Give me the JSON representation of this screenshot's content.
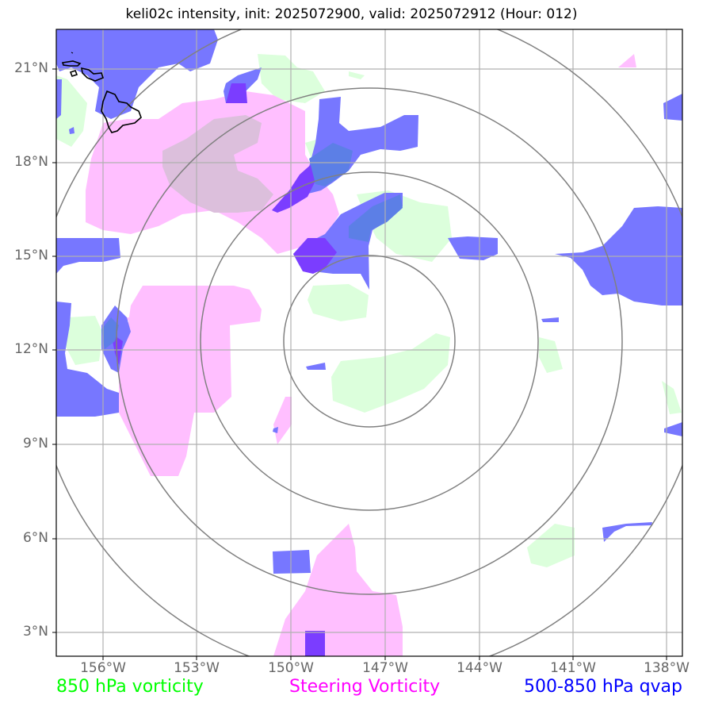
{
  "title": "keli02c intensity, init: 2025072900, valid: 2025072912 (Hour: 012)",
  "lat_labels": [
    "21°N",
    "18°N",
    "15°N",
    "12°N",
    "9°N",
    "6°N",
    "3°N"
  ],
  "lon_labels": [
    "156°W",
    "153°W",
    "150°W",
    "147°W",
    "144°W",
    "141°W",
    "138°W"
  ],
  "legend": {
    "vort850": {
      "label": "850 hPa vorticity",
      "color": "#00ff00"
    },
    "steering": {
      "label": "Steering Vorticity",
      "color": "#ff00ff"
    },
    "qvap": {
      "label": "500-850 hPa qvap",
      "color": "#0000ff"
    }
  },
  "colors": {
    "green_fill": "#dcffdc",
    "pink_fill": "#ffbfff",
    "blue_fill": "#7777ff",
    "purple_fill": "#7b3dff",
    "ring": "#808080",
    "grid": "#b0b0b0",
    "coast": "#000000"
  }
}
